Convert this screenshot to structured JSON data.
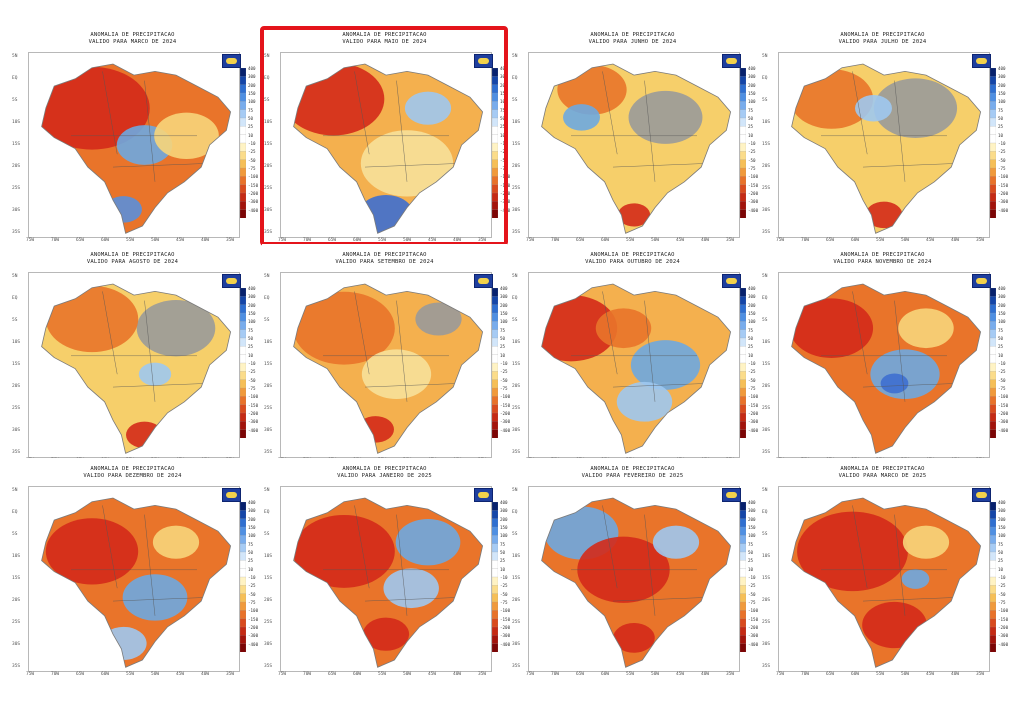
{
  "panels": [
    {
      "title": "ANOMALIA DE PRECIPITACAO",
      "subtitle": "VALIDO PARA MARCO DE 2024",
      "highlighted": false,
      "base": "#e9742a",
      "blobs": [
        [
          "#d42a1a",
          0.3,
          0.3,
          0.25
        ],
        [
          "#6ea8e0",
          0.55,
          0.5,
          0.12
        ],
        [
          "#f7d57a",
          0.75,
          0.45,
          0.14
        ],
        [
          "#5b8fd9",
          0.45,
          0.85,
          0.08
        ]
      ]
    },
    {
      "title": "ANOMALIA DE PRECIPITACAO",
      "subtitle": "VALIDO PARA MAIO DE 2024",
      "highlighted": true,
      "base": "#f4b04e",
      "blobs": [
        [
          "#d42a1a",
          0.25,
          0.25,
          0.22
        ],
        [
          "#3e6fd0",
          0.5,
          0.88,
          0.12
        ],
        [
          "#9ec8f0",
          0.7,
          0.3,
          0.1
        ],
        [
          "#f7e19a",
          0.6,
          0.6,
          0.2
        ]
      ]
    },
    {
      "title": "ANOMALIA DE PRECIPITACAO",
      "subtitle": "VALIDO PARA JUNHO DE 2024",
      "highlighted": false,
      "base": "#f6cf6a",
      "blobs": [
        [
          "#9a9a9a",
          0.65,
          0.35,
          0.16
        ],
        [
          "#e9742a",
          0.3,
          0.2,
          0.15
        ],
        [
          "#6ea8e0",
          0.25,
          0.35,
          0.08
        ],
        [
          "#d42a1a",
          0.5,
          0.88,
          0.07
        ]
      ]
    },
    {
      "title": "ANOMALIA DE PRECIPITACAO",
      "subtitle": "VALIDO PARA JULHO DE 2024",
      "highlighted": false,
      "base": "#f6cf6a",
      "blobs": [
        [
          "#9a9a9a",
          0.65,
          0.3,
          0.18
        ],
        [
          "#e9742a",
          0.25,
          0.25,
          0.18
        ],
        [
          "#d42a1a",
          0.5,
          0.88,
          0.08
        ],
        [
          "#9ec8f0",
          0.45,
          0.3,
          0.08
        ]
      ]
    },
    {
      "title": "ANOMALIA DE PRECIPITACAO",
      "subtitle": "VALIDO PARA AGOSTO DE 2024",
      "highlighted": false,
      "base": "#f6cf6a",
      "blobs": [
        [
          "#9a9a9a",
          0.7,
          0.3,
          0.17
        ],
        [
          "#e9742a",
          0.3,
          0.25,
          0.2
        ],
        [
          "#d42a1a",
          0.55,
          0.88,
          0.08
        ],
        [
          "#9ec8f0",
          0.6,
          0.55,
          0.07
        ]
      ]
    },
    {
      "title": "ANOMALIA DE PRECIPITACAO",
      "subtitle": "VALIDO PARA SETEMBRO DE 2024",
      "highlighted": false,
      "base": "#f4b04e",
      "blobs": [
        [
          "#e9742a",
          0.3,
          0.3,
          0.22
        ],
        [
          "#9a9a9a",
          0.75,
          0.25,
          0.1
        ],
        [
          "#f7e19a",
          0.55,
          0.55,
          0.15
        ],
        [
          "#d42a1a",
          0.45,
          0.85,
          0.08
        ]
      ]
    },
    {
      "title": "ANOMALIA DE PRECIPITACAO",
      "subtitle": "VALIDO PARA OUTUBRO DE 2024",
      "highlighted": false,
      "base": "#f4b04e",
      "blobs": [
        [
          "#d42a1a",
          0.2,
          0.3,
          0.2
        ],
        [
          "#6ea8e0",
          0.65,
          0.5,
          0.15
        ],
        [
          "#9ec8f0",
          0.55,
          0.7,
          0.12
        ],
        [
          "#e9742a",
          0.45,
          0.3,
          0.12
        ]
      ]
    },
    {
      "title": "ANOMALIA DE PRECIPITACAO",
      "subtitle": "VALIDO PARA NOVEMBRO DE 2024",
      "highlighted": false,
      "base": "#e9742a",
      "blobs": [
        [
          "#d42a1a",
          0.25,
          0.3,
          0.18
        ],
        [
          "#6ea8e0",
          0.6,
          0.55,
          0.15
        ],
        [
          "#3e6fd0",
          0.55,
          0.6,
          0.06
        ],
        [
          "#f7d57a",
          0.7,
          0.3,
          0.12
        ]
      ]
    },
    {
      "title": "ANOMALIA DE PRECIPITACAO",
      "subtitle": "VALIDO PARA DEZEMBRO DE 2024",
      "highlighted": false,
      "base": "#e9742a",
      "blobs": [
        [
          "#d42a1a",
          0.3,
          0.35,
          0.2
        ],
        [
          "#6ea8e0",
          0.6,
          0.6,
          0.14
        ],
        [
          "#9ec8f0",
          0.45,
          0.85,
          0.1
        ],
        [
          "#f7d57a",
          0.7,
          0.3,
          0.1
        ]
      ]
    },
    {
      "title": "ANOMALIA DE PRECIPITACAO",
      "subtitle": "VALIDO PARA JANEIRO DE 2025",
      "highlighted": false,
      "base": "#e9742a",
      "blobs": [
        [
          "#d42a1a",
          0.3,
          0.35,
          0.22
        ],
        [
          "#6ea8e0",
          0.7,
          0.3,
          0.14
        ],
        [
          "#9ec8f0",
          0.62,
          0.55,
          0.12
        ],
        [
          "#d42a1a",
          0.5,
          0.8,
          0.1
        ]
      ]
    },
    {
      "title": "ANOMALIA DE PRECIPITACAO",
      "subtitle": "VALIDO PARA FEVEREIRO DE 2025",
      "highlighted": false,
      "base": "#e9742a",
      "blobs": [
        [
          "#6ea8e0",
          0.25,
          0.25,
          0.16
        ],
        [
          "#d42a1a",
          0.45,
          0.45,
          0.2
        ],
        [
          "#9ec8f0",
          0.7,
          0.3,
          0.1
        ],
        [
          "#d42a1a",
          0.5,
          0.82,
          0.09
        ]
      ]
    },
    {
      "title": "ANOMALIA DE PRECIPITACAO",
      "subtitle": "VALIDO PARA MARCO DE 2025",
      "highlighted": false,
      "base": "#e9742a",
      "blobs": [
        [
          "#d42a1a",
          0.35,
          0.35,
          0.24
        ],
        [
          "#d42a1a",
          0.55,
          0.75,
          0.14
        ],
        [
          "#f7d57a",
          0.7,
          0.3,
          0.1
        ],
        [
          "#6ea8e0",
          0.65,
          0.5,
          0.06
        ]
      ]
    }
  ],
  "colorbar_labels": [
    "400",
    "300",
    "200",
    "150",
    "100",
    "75",
    "50",
    "25",
    "10",
    "-10",
    "-25",
    "-50",
    "-75",
    "-100",
    "-150",
    "-200",
    "-300",
    "-400"
  ],
  "colorbar_colors": [
    "#08226e",
    "#1546a8",
    "#2f6fd0",
    "#4f8fe2",
    "#78acec",
    "#a6cbf4",
    "#d2e6fa",
    "#ffffff",
    "#ffffff",
    "#fff3c4",
    "#fbdc8a",
    "#f6bf57",
    "#f09a3c",
    "#e8722a",
    "#d94b1e",
    "#c52a14",
    "#a3140c",
    "#7c0606"
  ],
  "lat_labels": [
    "5N",
    "EQ",
    "5S",
    "10S",
    "15S",
    "20S",
    "25S",
    "30S",
    "35S"
  ],
  "lon_labels": [
    "75W",
    "70W",
    "65W",
    "60W",
    "55W",
    "50W",
    "45W",
    "40W",
    "35W"
  ],
  "colors": {
    "border": "#7a7a7a",
    "highlight": "#e4141b",
    "logo": "#1f3f9e"
  }
}
